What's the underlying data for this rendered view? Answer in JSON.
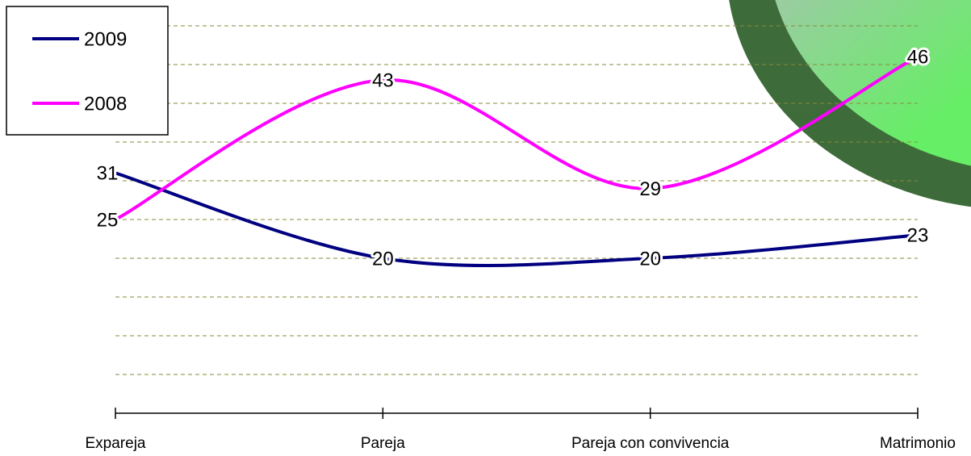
{
  "chart_data": {
    "type": "line",
    "categories": [
      "Expareja",
      "Pareja",
      "Pareja con convivencia",
      "Matrimonio"
    ],
    "series": [
      {
        "name": "2009",
        "color": "#000080",
        "values": [
          31,
          20,
          20,
          23
        ]
      },
      {
        "name": "2008",
        "color": "#ff00ff",
        "values": [
          25,
          43,
          29,
          46
        ]
      }
    ],
    "ylim": [
      0,
      50
    ],
    "yticks": [
      5,
      10,
      15,
      20,
      25,
      30,
      35,
      40,
      45,
      50
    ],
    "grid": true
  }
}
